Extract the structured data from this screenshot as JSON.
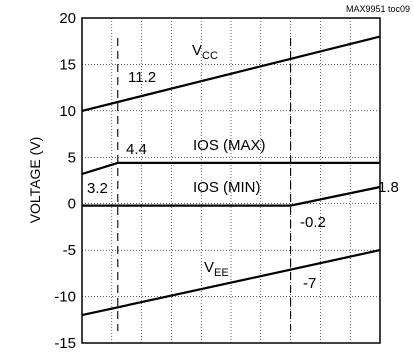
{
  "chart_data": {
    "type": "line",
    "source_tag": "MAX9951 toc09",
    "ylabel": "VOLTAGE (V)",
    "ylim": [
      -15,
      20
    ],
    "yticks": [
      "20",
      "15",
      "10",
      "5",
      "0",
      "-5",
      "-10",
      "-15"
    ],
    "grid": true,
    "series": [
      {
        "name_main": "V",
        "name_sub": "CC",
        "x": [
          0,
          1
        ],
        "y": [
          10,
          18
        ]
      },
      {
        "name": "IOS (MAX)",
        "x": [
          0,
          0.12,
          1
        ],
        "y": [
          3.2,
          4.4,
          4.4
        ]
      },
      {
        "name": "IOS (MIN)",
        "x": [
          0,
          0.7,
          1
        ],
        "y": [
          -0.2,
          -0.2,
          1.8
        ]
      },
      {
        "name_main": "V",
        "name_sub": "EE",
        "x": [
          0,
          1
        ],
        "y": [
          -12,
          -5
        ]
      }
    ],
    "annotations": [
      "11.2",
      "4.4",
      "3.2",
      "1.8",
      "-0.2",
      "-7"
    ]
  }
}
